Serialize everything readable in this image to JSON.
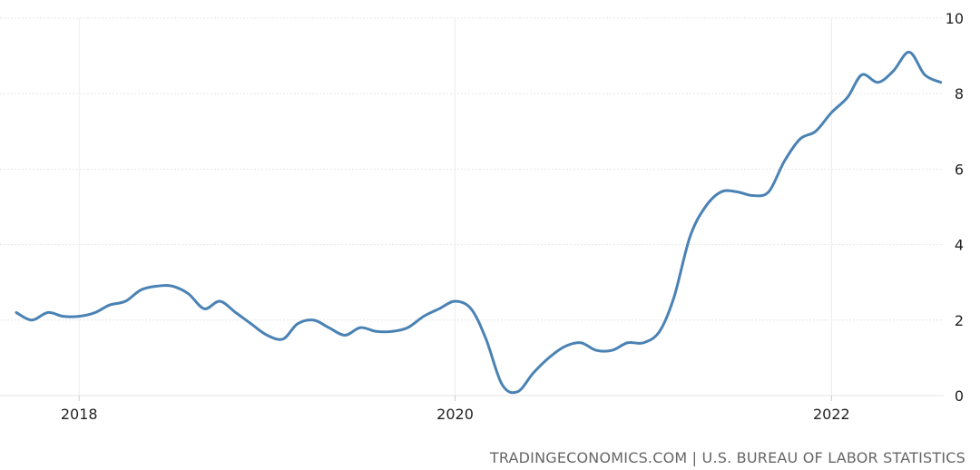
{
  "chart_data": {
    "type": "line",
    "title": "",
    "xlabel": "",
    "ylabel": "",
    "xlim": [
      "2017-09-01",
      "2022-09-01"
    ],
    "ylim": [
      0,
      10
    ],
    "y_ticks": [
      0,
      2,
      4,
      6,
      8,
      10
    ],
    "x_ticks": [
      {
        "date": "2018-01-01",
        "label": "2018"
      },
      {
        "date": "2020-01-01",
        "label": "2020"
      },
      {
        "date": "2022-01-01",
        "label": "2022"
      }
    ],
    "grid": true,
    "line_color": "#4a82b4",
    "series": [
      {
        "name": "",
        "points": [
          [
            "2017-09-01",
            2.2
          ],
          [
            "2017-10-01",
            2.0
          ],
          [
            "2017-11-01",
            2.2
          ],
          [
            "2017-12-01",
            2.1
          ],
          [
            "2018-01-01",
            2.1
          ],
          [
            "2018-02-01",
            2.2
          ],
          [
            "2018-03-01",
            2.4
          ],
          [
            "2018-04-01",
            2.5
          ],
          [
            "2018-05-01",
            2.8
          ],
          [
            "2018-06-01",
            2.9
          ],
          [
            "2018-07-01",
            2.9
          ],
          [
            "2018-08-01",
            2.7
          ],
          [
            "2018-09-01",
            2.3
          ],
          [
            "2018-10-01",
            2.5
          ],
          [
            "2018-11-01",
            2.2
          ],
          [
            "2018-12-01",
            1.9
          ],
          [
            "2019-01-01",
            1.6
          ],
          [
            "2019-02-01",
            1.5
          ],
          [
            "2019-03-01",
            1.9
          ],
          [
            "2019-04-01",
            2.0
          ],
          [
            "2019-05-01",
            1.8
          ],
          [
            "2019-06-01",
            1.6
          ],
          [
            "2019-07-01",
            1.8
          ],
          [
            "2019-08-01",
            1.7
          ],
          [
            "2019-09-01",
            1.7
          ],
          [
            "2019-10-01",
            1.8
          ],
          [
            "2019-11-01",
            2.1
          ],
          [
            "2019-12-01",
            2.3
          ],
          [
            "2020-01-01",
            2.5
          ],
          [
            "2020-02-01",
            2.3
          ],
          [
            "2020-03-01",
            1.5
          ],
          [
            "2020-04-01",
            0.3
          ],
          [
            "2020-05-01",
            0.1
          ],
          [
            "2020-06-01",
            0.6
          ],
          [
            "2020-07-01",
            1.0
          ],
          [
            "2020-08-01",
            1.3
          ],
          [
            "2020-09-01",
            1.4
          ],
          [
            "2020-10-01",
            1.2
          ],
          [
            "2020-11-01",
            1.2
          ],
          [
            "2020-12-01",
            1.4
          ],
          [
            "2021-01-01",
            1.4
          ],
          [
            "2021-02-01",
            1.7
          ],
          [
            "2021-03-01",
            2.6
          ],
          [
            "2021-04-01",
            4.2
          ],
          [
            "2021-05-01",
            5.0
          ],
          [
            "2021-06-01",
            5.4
          ],
          [
            "2021-07-01",
            5.4
          ],
          [
            "2021-08-01",
            5.3
          ],
          [
            "2021-09-01",
            5.4
          ],
          [
            "2021-10-01",
            6.2
          ],
          [
            "2021-11-01",
            6.8
          ],
          [
            "2021-12-01",
            7.0
          ],
          [
            "2022-01-01",
            7.5
          ],
          [
            "2022-02-01",
            7.9
          ],
          [
            "2022-03-01",
            8.5
          ],
          [
            "2022-04-01",
            8.3
          ],
          [
            "2022-05-01",
            8.6
          ],
          [
            "2022-06-01",
            9.1
          ],
          [
            "2022-07-01",
            8.5
          ],
          [
            "2022-08-01",
            8.3
          ]
        ]
      }
    ]
  },
  "source": "TRADINGECONOMICS.COM | U.S. BUREAU OF LABOR STATISTICS"
}
